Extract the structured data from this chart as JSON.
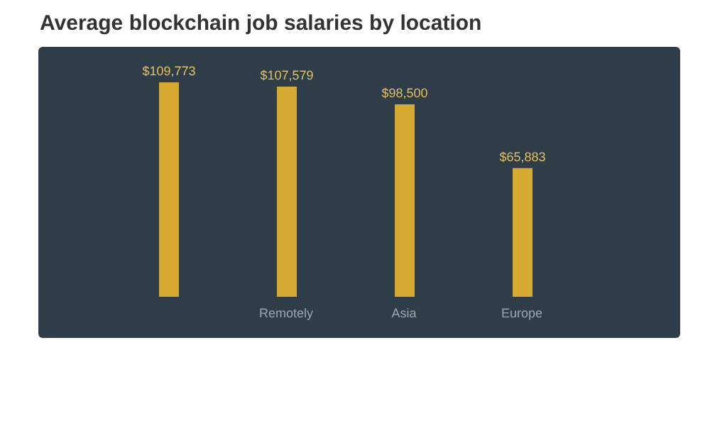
{
  "chart_data": {
    "type": "bar",
    "title": "Average blockchain job salaries by location",
    "categories": [
      null,
      "Remotely",
      "Asia",
      "Europe"
    ],
    "values": [
      109773,
      107579,
      98500,
      65883
    ],
    "value_labels": [
      "$109,773",
      "$107,579",
      "$98,500",
      "$65,883"
    ],
    "color": "#d6a930"
  }
}
